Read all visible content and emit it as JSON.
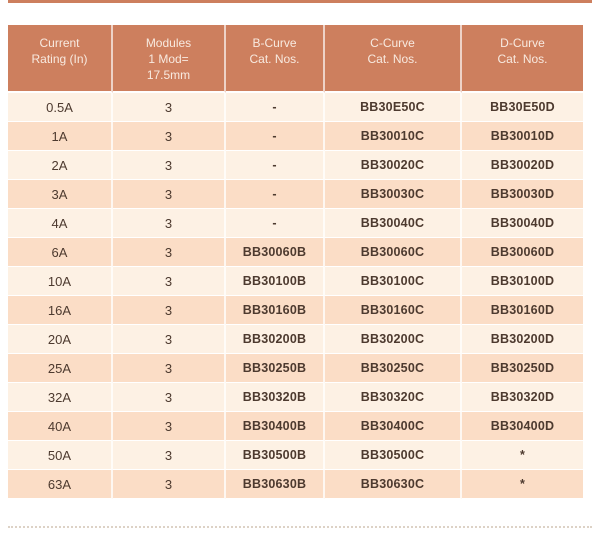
{
  "page": {
    "background": "#ffffff"
  },
  "colors": {
    "header_bg": "#cd7f5e",
    "header_text": "#f8eae0",
    "row_light_bg": "#fdf1e4",
    "row_dark_bg": "#fbddc6",
    "cell_text": "#4d3a2f",
    "dotted_rule": "#ddd2c6"
  },
  "table": {
    "columns": [
      "Current\nRating (In)",
      "Modules\n1 Mod=\n17.5mm",
      "B-Curve\nCat. Nos.",
      "C-Curve\nCat. Nos.",
      "D-Curve\nCat. Nos."
    ],
    "rows": [
      [
        "0.5A",
        "3",
        "-",
        "BB30E50C",
        "BB30E50D"
      ],
      [
        "1A",
        "3",
        "-",
        "BB30010C",
        "BB30010D"
      ],
      [
        "2A",
        "3",
        "-",
        "BB30020C",
        "BB30020D"
      ],
      [
        "3A",
        "3",
        "-",
        "BB30030C",
        "BB30030D"
      ],
      [
        "4A",
        "3",
        "-",
        "BB30040C",
        "BB30040D"
      ],
      [
        "6A",
        "3",
        "BB30060B",
        "BB30060C",
        "BB30060D"
      ],
      [
        "10A",
        "3",
        "BB30100B",
        "BB30100C",
        "BB30100D"
      ],
      [
        "16A",
        "3",
        "BB30160B",
        "BB30160C",
        "BB30160D"
      ],
      [
        "20A",
        "3",
        "BB30200B",
        "BB30200C",
        "BB30200D"
      ],
      [
        "25A",
        "3",
        "BB30250B",
        "BB30250C",
        "BB30250D"
      ],
      [
        "32A",
        "3",
        "BB30320B",
        "BB30320C",
        "BB30320D"
      ],
      [
        "40A",
        "3",
        "BB30400B",
        "BB30400C",
        "BB30400D"
      ],
      [
        "50A",
        "3",
        "BB30500B",
        "BB30500C",
        "*"
      ],
      [
        "63A",
        "3",
        "BB30630B",
        "BB30630C",
        "*"
      ]
    ]
  }
}
